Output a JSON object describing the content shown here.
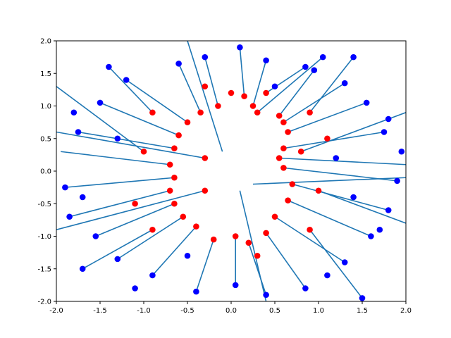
{
  "chart_data": {
    "type": "scatter",
    "title": "",
    "xlabel": "",
    "ylabel": "",
    "xlim": [
      -2.0,
      2.0
    ],
    "ylim": [
      -2.0,
      2.0
    ],
    "grid": false,
    "legend": "none",
    "x_ticks": [
      "-2.0",
      "-1.5",
      "-1.0",
      "-0.5",
      "0.0",
      "0.5",
      "1.0",
      "1.5",
      "2.0"
    ],
    "y_ticks": [
      "-2.0",
      "-1.5",
      "-1.0",
      "-0.5",
      "0.0",
      "0.5",
      "1.0",
      "1.5",
      "2.0"
    ],
    "colors": {
      "segment": "#1f77b4",
      "outer_point": "#0000ff",
      "inner_point": "#ff0000"
    },
    "series": [
      {
        "role": "segments",
        "segments": [
          [
            [
              0.3,
              0.9
            ],
            [
              1.05,
              1.75
            ]
          ],
          [
            [
              0.25,
              1.0
            ],
            [
              0.4,
              1.7
            ]
          ],
          [
            [
              0.15,
              1.15
            ],
            [
              0.1,
              1.9
            ]
          ],
          [
            [
              0.6,
              0.75
            ],
            [
              1.3,
              1.35
            ]
          ],
          [
            [
              0.55,
              0.85
            ],
            [
              0.95,
              1.55
            ]
          ],
          [
            [
              0.65,
              0.6
            ],
            [
              1.55,
              1.05
            ]
          ],
          [
            [
              0.6,
              0.35
            ],
            [
              1.75,
              0.6
            ]
          ],
          [
            [
              0.55,
              0.2
            ],
            [
              2.0,
              0.1
            ]
          ],
          [
            [
              0.6,
              0.05
            ],
            [
              1.9,
              -0.15
            ]
          ],
          [
            [
              0.7,
              -0.2
            ],
            [
              1.8,
              -0.6
            ]
          ],
          [
            [
              0.65,
              -0.45
            ],
            [
              1.6,
              -1.0
            ]
          ],
          [
            [
              0.5,
              -0.7
            ],
            [
              1.3,
              -1.4
            ]
          ],
          [
            [
              0.4,
              -0.95
            ],
            [
              0.85,
              -1.8
            ]
          ],
          [
            [
              0.2,
              -1.1
            ],
            [
              0.4,
              -1.9
            ]
          ],
          [
            [
              0.05,
              -1.0
            ],
            [
              0.05,
              -1.75
            ]
          ],
          [
            [
              -0.2,
              -1.05
            ],
            [
              -0.4,
              -1.85
            ]
          ],
          [
            [
              -0.4,
              -0.85
            ],
            [
              -0.9,
              -1.6
            ]
          ],
          [
            [
              -0.55,
              -0.7
            ],
            [
              -1.3,
              -1.35
            ]
          ],
          [
            [
              -0.65,
              -0.5
            ],
            [
              -1.55,
              -1.0
            ]
          ],
          [
            [
              -0.7,
              -0.3
            ],
            [
              -1.85,
              -0.7
            ]
          ],
          [
            [
              -0.65,
              -0.1
            ],
            [
              -1.9,
              -0.25
            ]
          ],
          [
            [
              -0.7,
              0.1
            ],
            [
              -1.95,
              0.3
            ]
          ],
          [
            [
              -0.65,
              0.35
            ],
            [
              -1.75,
              0.6
            ]
          ],
          [
            [
              -0.6,
              0.55
            ],
            [
              -1.5,
              1.05
            ]
          ],
          [
            [
              -0.5,
              0.75
            ],
            [
              -1.2,
              1.4
            ]
          ],
          [
            [
              -0.35,
              0.9
            ],
            [
              -0.6,
              1.65
            ]
          ],
          [
            [
              -0.15,
              1.0
            ],
            [
              -0.3,
              1.75
            ]
          ],
          [
            [
              0.4,
              1.2
            ],
            [
              0.85,
              1.6
            ]
          ],
          [
            [
              0.8,
              0.3
            ],
            [
              2.0,
              0.9
            ]
          ],
          [
            [
              0.25,
              -0.2
            ],
            [
              2.0,
              -0.1
            ]
          ],
          [
            [
              -0.3,
              0.2
            ],
            [
              -2.0,
              0.6
            ]
          ],
          [
            [
              -0.3,
              -0.3
            ],
            [
              -2.0,
              -0.9
            ]
          ],
          [
            [
              0.1,
              -0.3
            ],
            [
              0.4,
              -2.0
            ]
          ],
          [
            [
              -0.1,
              0.3
            ],
            [
              -0.5,
              2.0
            ]
          ],
          [
            [
              0.9,
              0.9
            ],
            [
              1.4,
              1.75
            ]
          ],
          [
            [
              -0.9,
              -0.9
            ],
            [
              -1.7,
              -1.5
            ]
          ],
          [
            [
              0.9,
              -0.9
            ],
            [
              1.5,
              -1.95
            ]
          ],
          [
            [
              -0.9,
              0.9
            ],
            [
              -1.4,
              1.6
            ]
          ],
          [
            [
              1.0,
              -0.3
            ],
            [
              2.0,
              -0.8
            ]
          ],
          [
            [
              -1.0,
              0.3
            ],
            [
              -2.0,
              1.3
            ]
          ]
        ]
      },
      {
        "role": "outer-points",
        "points": [
          [
            1.05,
            1.75
          ],
          [
            0.4,
            1.7
          ],
          [
            0.1,
            1.9
          ],
          [
            1.3,
            1.35
          ],
          [
            0.95,
            1.55
          ],
          [
            1.55,
            1.05
          ],
          [
            1.75,
            0.6
          ],
          [
            1.9,
            -0.15
          ],
          [
            1.8,
            -0.6
          ],
          [
            1.6,
            -1.0
          ],
          [
            1.3,
            -1.4
          ],
          [
            0.85,
            -1.8
          ],
          [
            0.4,
            -1.9
          ],
          [
            0.05,
            -1.75
          ],
          [
            -0.4,
            -1.85
          ],
          [
            -0.9,
            -1.6
          ],
          [
            -1.3,
            -1.35
          ],
          [
            -1.55,
            -1.0
          ],
          [
            -1.85,
            -0.7
          ],
          [
            -1.9,
            -0.25
          ],
          [
            -1.75,
            0.6
          ],
          [
            -1.5,
            1.05
          ],
          [
            -1.2,
            1.4
          ],
          [
            -0.6,
            1.65
          ],
          [
            -0.3,
            1.75
          ],
          [
            0.85,
            1.6
          ],
          [
            1.4,
            1.75
          ],
          [
            -1.7,
            -1.5
          ],
          [
            1.5,
            -1.95
          ],
          [
            -1.4,
            1.6
          ],
          [
            1.8,
            0.8
          ],
          [
            1.95,
            0.3
          ],
          [
            1.7,
            -0.9
          ],
          [
            1.1,
            -1.6
          ],
          [
            -1.1,
            -1.8
          ],
          [
            -1.7,
            -0.4
          ],
          [
            -1.8,
            0.9
          ],
          [
            -1.3,
            0.5
          ],
          [
            1.2,
            0.2
          ],
          [
            1.4,
            -0.4
          ],
          [
            0.5,
            1.3
          ],
          [
            -0.5,
            -1.3
          ]
        ]
      },
      {
        "role": "inner-points",
        "points": [
          [
            0.3,
            0.9
          ],
          [
            0.25,
            1.0
          ],
          [
            0.15,
            1.15
          ],
          [
            0.6,
            0.75
          ],
          [
            0.55,
            0.85
          ],
          [
            0.65,
            0.6
          ],
          [
            0.6,
            0.35
          ],
          [
            0.55,
            0.2
          ],
          [
            0.6,
            0.05
          ],
          [
            0.7,
            -0.2
          ],
          [
            0.65,
            -0.45
          ],
          [
            0.5,
            -0.7
          ],
          [
            0.4,
            -0.95
          ],
          [
            0.2,
            -1.1
          ],
          [
            0.05,
            -1.0
          ],
          [
            -0.2,
            -1.05
          ],
          [
            -0.4,
            -0.85
          ],
          [
            -0.55,
            -0.7
          ],
          [
            -0.65,
            -0.5
          ],
          [
            -0.7,
            -0.3
          ],
          [
            -0.65,
            -0.1
          ],
          [
            -0.7,
            0.1
          ],
          [
            -0.65,
            0.35
          ],
          [
            -0.6,
            0.55
          ],
          [
            -0.5,
            0.75
          ],
          [
            -0.35,
            0.9
          ],
          [
            -0.15,
            1.0
          ],
          [
            0.4,
            1.2
          ],
          [
            0.8,
            0.3
          ],
          [
            -0.3,
            0.2
          ],
          [
            -0.3,
            -0.3
          ],
          [
            0.9,
            0.9
          ],
          [
            -0.9,
            -0.9
          ],
          [
            0.9,
            -0.9
          ],
          [
            -0.9,
            0.9
          ],
          [
            1.0,
            -0.3
          ],
          [
            -1.0,
            0.3
          ],
          [
            1.1,
            0.5
          ],
          [
            -1.1,
            -0.5
          ],
          [
            0.3,
            -1.3
          ],
          [
            -0.3,
            1.3
          ],
          [
            0.0,
            1.2
          ]
        ]
      }
    ]
  }
}
